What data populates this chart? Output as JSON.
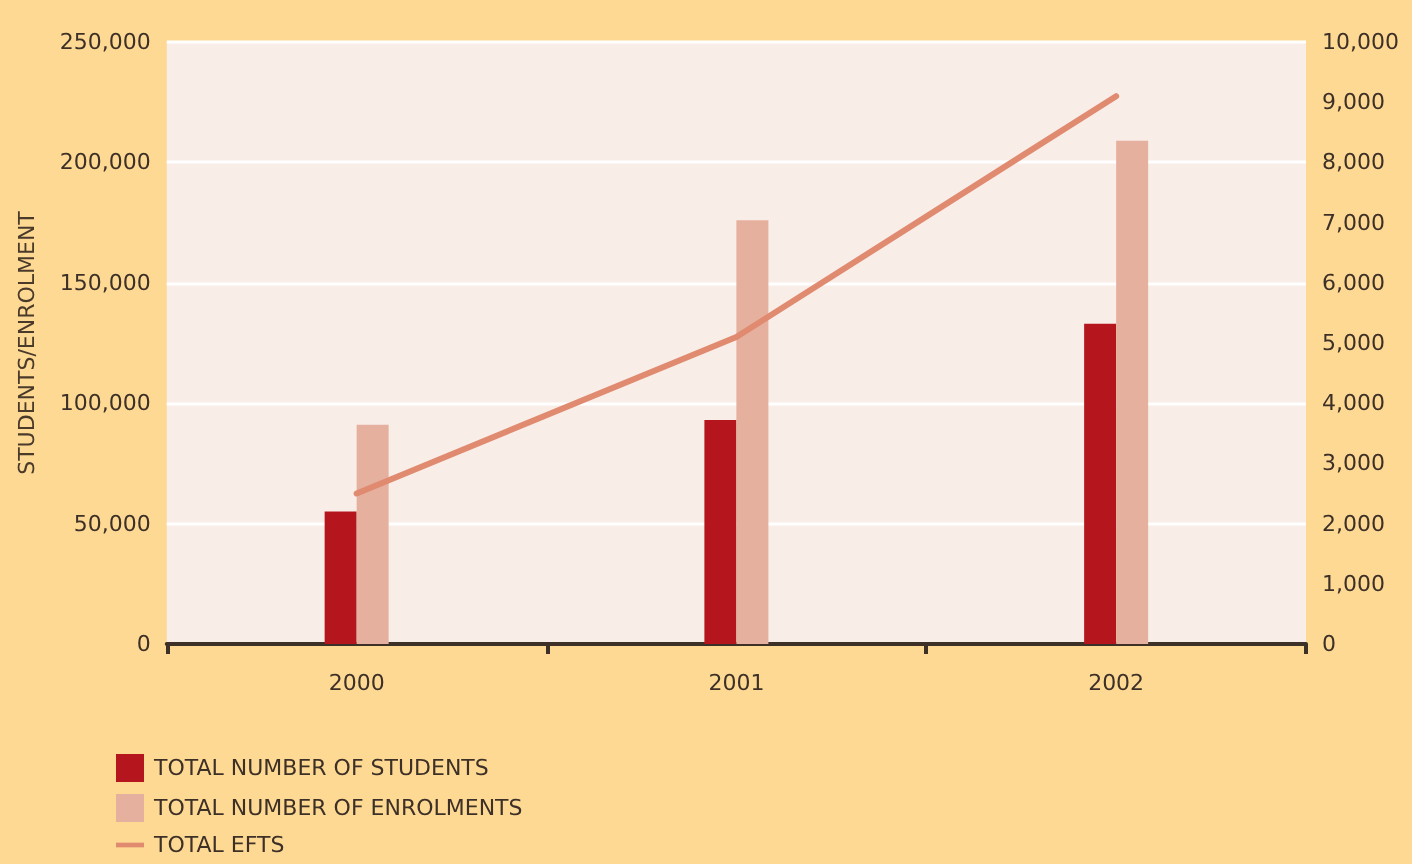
{
  "chart_data": {
    "type": "bar",
    "ylabel": "STUDENTS/ENROLMENT",
    "categories": [
      "2000",
      "2001",
      "2002"
    ],
    "series": [
      {
        "name": "TOTAL NUMBER OF STUDENTS",
        "color": "#b5161e",
        "values": [
          55000,
          93000,
          133000
        ]
      },
      {
        "name": "TOTAL NUMBER OF ENROLMENTS",
        "color": "#e6b09e",
        "values": [
          91000,
          176000,
          209000
        ]
      },
      {
        "name": "TOTAL EFTS",
        "type": "line",
        "axis": "y2",
        "color": "#e08a70",
        "values": [
          2500,
          5100,
          9100
        ]
      }
    ],
    "ylim": [
      0,
      250000
    ],
    "yticks": [
      0,
      {
        "value": 50000,
        "label": "50,000"
      },
      {
        "value": 100000,
        "label": "100,000"
      },
      {
        "value": 150000,
        "label": "150,000"
      },
      {
        "value": 200000,
        "label": "200,000"
      },
      {
        "value": 250000,
        "label": "250,000"
      }
    ],
    "y2lim": [
      0,
      10000
    ],
    "y2ticks": [
      0,
      {
        "value": 1000,
        "label": "1,000"
      },
      {
        "value": 2000,
        "label": "2,000"
      },
      {
        "value": 3000,
        "label": "3,000"
      },
      {
        "value": 4000,
        "label": "4,000"
      },
      {
        "value": 5000,
        "label": "5,000"
      },
      {
        "value": 6000,
        "label": "6,000"
      },
      {
        "value": 7000,
        "label": "7,000"
      },
      {
        "value": 8000,
        "label": "8,000"
      },
      {
        "value": 9000,
        "label": "9,000"
      },
      {
        "value": 10000,
        "label": "10,000"
      }
    ],
    "grid": "y",
    "legend": "bottom left",
    "marker": "none",
    "line_style": "solid"
  }
}
